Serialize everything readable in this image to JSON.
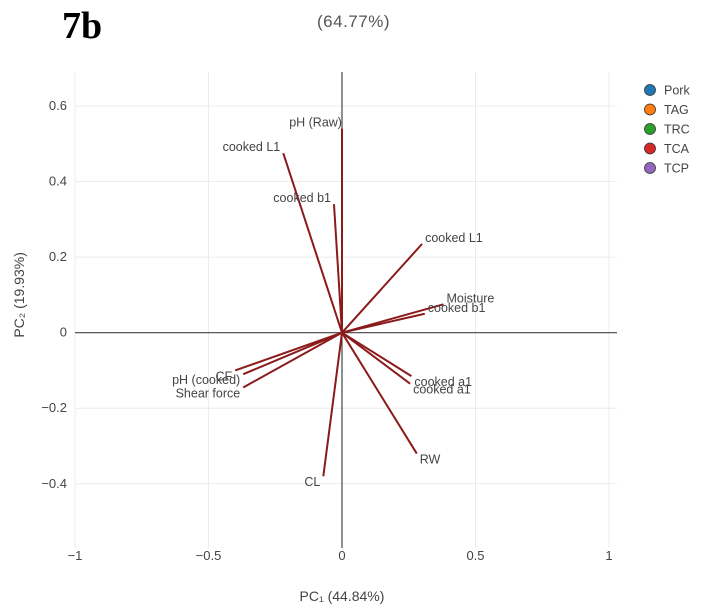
{
  "figure_label": "7b",
  "chart_data": {
    "type": "biplot",
    "title": "(64.77%)",
    "xlabel": "PC₁ (44.84%)",
    "ylabel": "PC₂ (19.93%)",
    "xlim": [
      -1.0,
      1.03
    ],
    "ylim": [
      -0.57,
      0.69
    ],
    "x_ticks": [
      -1,
      -0.5,
      0,
      0.5,
      1
    ],
    "x_tick_labels": [
      "−1",
      "−0.5",
      "0",
      "0.5",
      "1"
    ],
    "y_ticks": [
      -0.4,
      -0.2,
      0,
      0.2,
      0.4,
      0.6
    ],
    "y_tick_labels": [
      "−0.4",
      "−0.2",
      "0",
      "0.2",
      "0.4",
      "0.6"
    ],
    "grid": true,
    "vector_color": "#8b1a1a",
    "vectors": [
      {
        "label": "pH (Raw)",
        "x": 0.0,
        "y": 0.54
      },
      {
        "label": "cooked L1",
        "x": -0.22,
        "y": 0.475
      },
      {
        "label": "cooked b1",
        "x": -0.03,
        "y": 0.34
      },
      {
        "label": "cooked L1",
        "x": 0.3,
        "y": 0.235
      },
      {
        "label": "Moisture",
        "x": 0.38,
        "y": 0.075
      },
      {
        "label": "cooked b1",
        "x": 0.31,
        "y": 0.05
      },
      {
        "label": "CF",
        "x": -0.4,
        "y": -0.1
      },
      {
        "label": "pH (cooked)",
        "x": -0.37,
        "y": -0.11
      },
      {
        "label": "Shear force",
        "x": -0.37,
        "y": -0.145
      },
      {
        "label": "cooked a1",
        "x": 0.26,
        "y": -0.115
      },
      {
        "label": "cooked a1",
        "x": 0.255,
        "y": -0.135
      },
      {
        "label": "RW",
        "x": 0.28,
        "y": -0.32
      },
      {
        "label": "CL",
        "x": -0.07,
        "y": -0.38
      }
    ],
    "legend": [
      {
        "name": "Pork",
        "color": "#1f77b4"
      },
      {
        "name": "TAG",
        "color": "#ff7f0e"
      },
      {
        "name": "TRC",
        "color": "#2ca02c"
      },
      {
        "name": "TCA",
        "color": "#d62728"
      },
      {
        "name": "TCP",
        "color": "#9467bd"
      }
    ],
    "legend_position": "top-right"
  }
}
